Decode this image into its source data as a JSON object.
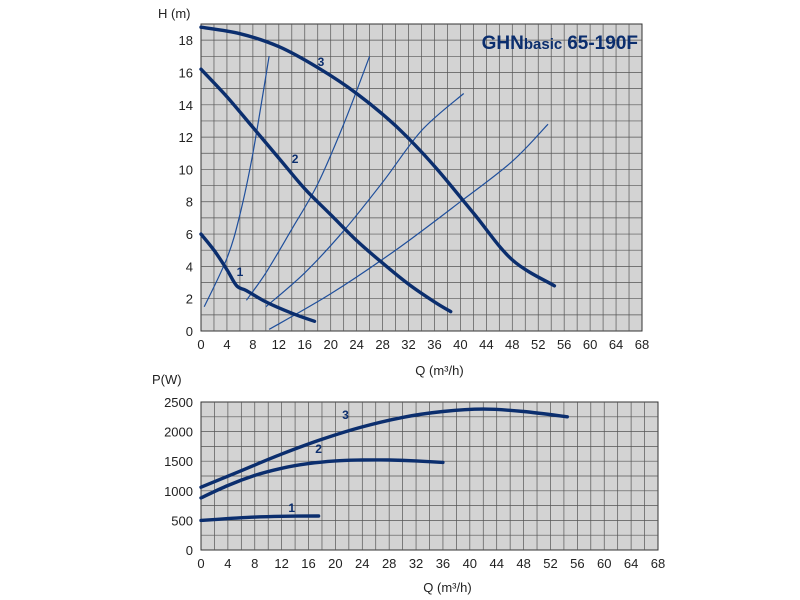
{
  "model": {
    "prefix": "GHN",
    "suffix": "basic",
    "code": "65-190F",
    "color": "#0b2e6e"
  },
  "chart_data": [
    {
      "type": "line",
      "xlabel": "Q (m³/h)",
      "ylabel": "H (m)",
      "xlim": [
        0,
        68
      ],
      "ylim": [
        0,
        19
      ],
      "xticks": [
        0,
        4,
        8,
        12,
        16,
        20,
        24,
        28,
        32,
        36,
        40,
        44,
        48,
        52,
        56,
        60,
        64,
        68
      ],
      "yticks": [
        0,
        2,
        4,
        6,
        8,
        10,
        12,
        14,
        16,
        18
      ],
      "grid": true,
      "series": [
        {
          "name": "1",
          "x": [
            0,
            2,
            4,
            5.5,
            7,
            10,
            14,
            17.5
          ],
          "y": [
            6,
            5,
            3.8,
            2.8,
            2.5,
            1.8,
            1.1,
            0.6
          ]
        },
        {
          "name": "2",
          "x": [
            0,
            4,
            8,
            12,
            16,
            20,
            24,
            28,
            32,
            36,
            38.5
          ],
          "y": [
            16.2,
            14.5,
            12.6,
            10.7,
            8.8,
            7.2,
            5.6,
            4.2,
            2.9,
            1.8,
            1.2
          ]
        },
        {
          "name": "3",
          "x": [
            0,
            6,
            12,
            18,
            24,
            30,
            36,
            42,
            48,
            54.5
          ],
          "y": [
            18.8,
            18.4,
            17.6,
            16.3,
            14.7,
            12.7,
            10.2,
            7.3,
            4.4,
            2.8
          ]
        }
      ],
      "system_curves": [
        {
          "x": [
            0.5,
            4,
            6,
            8,
            10.5
          ],
          "y": [
            1.5,
            4.5,
            7.2,
            11,
            17
          ]
        },
        {
          "x": [
            7,
            10,
            14,
            18,
            22,
            26
          ],
          "y": [
            1.9,
            3.6,
            6.3,
            9.1,
            12.8,
            17
          ]
        },
        {
          "x": [
            10,
            16,
            22,
            28,
            34,
            40.5
          ],
          "y": [
            1.5,
            3.6,
            6.2,
            9.2,
            12.4,
            14.7
          ]
        },
        {
          "x": [
            10.5,
            20,
            30,
            40,
            48,
            53.5
          ],
          "y": [
            0.1,
            2.3,
            5.0,
            8.0,
            10.5,
            12.8
          ]
        }
      ]
    },
    {
      "type": "line",
      "xlabel": "Q (m³/h)",
      "ylabel": "P(W)",
      "xlim": [
        0,
        68
      ],
      "ylim": [
        0,
        2500
      ],
      "xticks": [
        0,
        4,
        8,
        12,
        16,
        20,
        24,
        28,
        32,
        36,
        40,
        44,
        48,
        52,
        56,
        60,
        64,
        68
      ],
      "yticks": [
        0,
        500,
        1000,
        1500,
        2000,
        2500
      ],
      "grid": true,
      "series": [
        {
          "name": "1",
          "x": [
            0,
            4,
            8,
            12,
            17.5
          ],
          "y": [
            500,
            530,
            555,
            570,
            575
          ]
        },
        {
          "name": "2",
          "x": [
            0,
            4,
            8,
            12,
            16,
            20,
            24,
            28,
            32,
            36
          ],
          "y": [
            880,
            1090,
            1260,
            1380,
            1460,
            1505,
            1520,
            1520,
            1505,
            1480
          ]
        },
        {
          "name": "3",
          "x": [
            0,
            6,
            12,
            18,
            24,
            30,
            36,
            42,
            48,
            54.5
          ],
          "y": [
            1060,
            1340,
            1620,
            1870,
            2080,
            2240,
            2340,
            2380,
            2340,
            2250
          ]
        }
      ]
    }
  ]
}
